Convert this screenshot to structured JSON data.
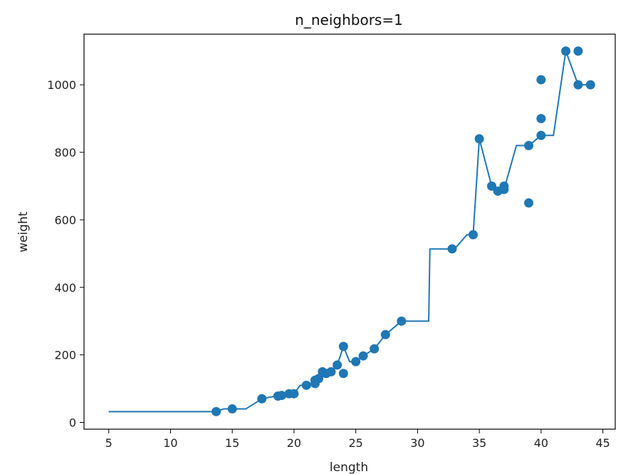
{
  "chart_data": {
    "type": "scatter",
    "title": "n_neighbors=1",
    "xlabel": "length",
    "ylabel": "weight",
    "xlim": [
      3.0,
      46.0
    ],
    "ylim": [
      -20,
      1150
    ],
    "xticks": [
      5,
      10,
      15,
      20,
      25,
      30,
      35,
      40,
      45
    ],
    "yticks": [
      0,
      200,
      400,
      600,
      800,
      1000
    ],
    "grid": false,
    "color": "#1f77b4",
    "series": [
      {
        "kind": "scatter",
        "x": [
          13.7,
          15.0,
          17.4,
          18.7,
          19.0,
          19.6,
          20.0,
          21.0,
          21.7,
          21.7,
          22.0,
          22.3,
          22.6,
          23.0,
          23.5,
          24.0,
          24.0,
          25.0,
          25.6,
          26.5,
          27.4,
          28.7,
          32.8,
          34.5,
          35.0,
          36.0,
          36.5,
          37.0,
          37.0,
          39.0,
          39.0,
          40.0,
          40.0,
          40.0,
          42.0,
          43.0,
          43.0,
          44.0
        ],
        "y": [
          32,
          40,
          70,
          78,
          80,
          85,
          85,
          110,
          115,
          125,
          130,
          150,
          145,
          150,
          170,
          145,
          225,
          180,
          197,
          218,
          260,
          300,
          514,
          556,
          840,
          700,
          685,
          690,
          700,
          650,
          820,
          850,
          900,
          1015,
          1100,
          1000,
          1100,
          1000
        ]
      },
      {
        "kind": "line",
        "x": [
          5,
          6,
          8,
          10,
          12,
          13.7,
          14.3,
          15,
          16.1,
          17.4,
          18.5,
          18.7,
          19.3,
          19.6,
          20.0,
          20.5,
          21.0,
          21.7,
          22.0,
          22.3,
          22.6,
          23.0,
          23.5,
          24.0,
          24.5,
          25.0,
          25.6,
          26.5,
          27.4,
          28.7,
          29.0,
          30.0,
          30.9,
          31.0,
          32.8,
          33.0,
          34.0,
          34.5,
          35.0,
          36.0,
          36.5,
          37.0,
          38.0,
          39.0,
          40.0,
          41.0,
          42.0,
          43.0,
          44.0
        ],
        "y": [
          32,
          32,
          32,
          32,
          32,
          32,
          40,
          40,
          40,
          70,
          78,
          80,
          85,
          85,
          85,
          110,
          110,
          120,
          130,
          150,
          145,
          150,
          170,
          225,
          180,
          180,
          197,
          218,
          260,
          300,
          300,
          300,
          300,
          514,
          514,
          514,
          556,
          556,
          840,
          700,
          685,
          690,
          820,
          820,
          850,
          850,
          1100,
          1000,
          1000
        ]
      }
    ]
  }
}
